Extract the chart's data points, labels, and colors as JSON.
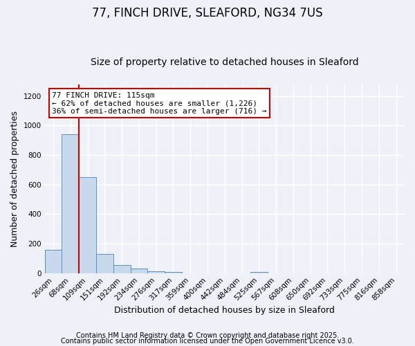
{
  "title": "77, FINCH DRIVE, SLEAFORD, NG34 7US",
  "subtitle": "Size of property relative to detached houses in Sleaford",
  "xlabel": "Distribution of detached houses by size in Sleaford",
  "ylabel": "Number of detached properties",
  "categories": [
    "26sqm",
    "68sqm",
    "109sqm",
    "151sqm",
    "192sqm",
    "234sqm",
    "276sqm",
    "317sqm",
    "359sqm",
    "400sqm",
    "442sqm",
    "484sqm",
    "525sqm",
    "567sqm",
    "608sqm",
    "650sqm",
    "692sqm",
    "733sqm",
    "775sqm",
    "816sqm",
    "858sqm"
  ],
  "values": [
    160,
    940,
    650,
    130,
    55,
    30,
    15,
    10,
    0,
    0,
    0,
    0,
    10,
    0,
    0,
    0,
    0,
    0,
    0,
    0,
    0
  ],
  "bar_color": "#c8d8ed",
  "bar_edge_color": "#6090c0",
  "redline_index": 2,
  "ylim": [
    0,
    1280
  ],
  "yticks": [
    0,
    200,
    400,
    600,
    800,
    1000,
    1200
  ],
  "annotation_title": "77 FINCH DRIVE: 115sqm",
  "annotation_line1": "← 62% of detached houses are smaller (1,226)",
  "annotation_line2": "36% of semi-detached houses are larger (716) →",
  "annotation_box_color": "#ffffff",
  "annotation_box_edge": "#cc0000",
  "footer_line1": "Contains HM Land Registry data © Crown copyright and database right 2025.",
  "footer_line2": "Contains public sector information licensed under the Open Government Licence v3.0.",
  "background_color": "#eef2f8",
  "plot_bg_color": "#eef2f8",
  "grid_color": "#ffffff",
  "title_fontsize": 12,
  "subtitle_fontsize": 10,
  "axis_label_fontsize": 9,
  "tick_fontsize": 7.5,
  "annotation_fontsize": 8,
  "footer_fontsize": 7
}
